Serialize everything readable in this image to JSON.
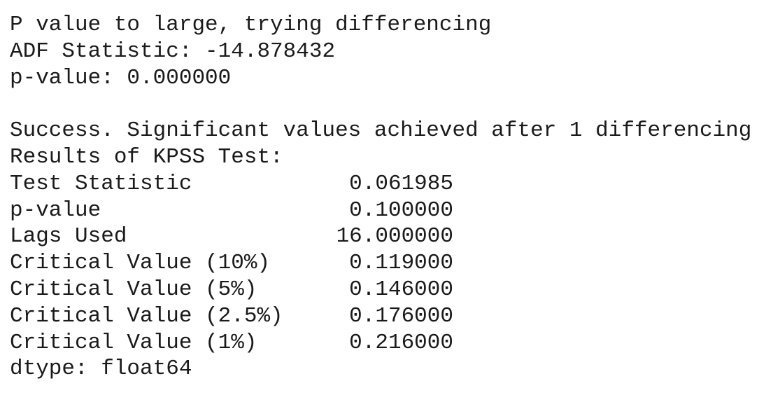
{
  "adf": {
    "message": "P value to large, trying differencing",
    "statistic_line": "ADF Statistic: -14.878432",
    "pvalue_line": "p-value: 0.000000"
  },
  "success_line": "Success. Significant values achieved after 1 differencing",
  "kpss": {
    "heading": "Results of KPSS Test:",
    "rows": [
      {
        "label": "Test Statistic",
        "value": "0.061985"
      },
      {
        "label": "p-value",
        "value": "0.100000"
      },
      {
        "label": "Lags Used",
        "value": "16.000000"
      },
      {
        "label": "Critical Value (10%)",
        "value": "0.119000"
      },
      {
        "label": "Critical Value (5%)",
        "value": "0.146000"
      },
      {
        "label": "Critical Value (2.5%)",
        "value": "0.176000"
      },
      {
        "label": "Critical Value (1%)",
        "value": "0.216000"
      }
    ],
    "dtype_line": "dtype: float64"
  }
}
